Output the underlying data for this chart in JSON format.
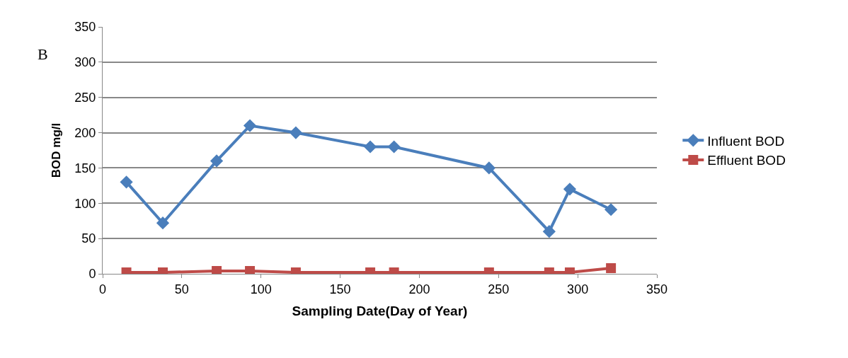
{
  "chart_data": {
    "type": "line",
    "xlabel": "Sampling Date(Day of Year)",
    "ylabel": "BOD mg/l",
    "annotations": [
      "B"
    ],
    "x": [
      15,
      38,
      72,
      93,
      122,
      169,
      184,
      244,
      282,
      295,
      321
    ],
    "series": [
      {
        "name": "Influent BOD",
        "color": "#4a7ebb",
        "marker": "diamond",
        "values": [
          130,
          72,
          160,
          210,
          200,
          180,
          180,
          150,
          60,
          120,
          91
        ]
      },
      {
        "name": "Effluent BOD",
        "color": "#be4b48",
        "marker": "square",
        "values": [
          2,
          2,
          4,
          4,
          2,
          2,
          2,
          2,
          2,
          2,
          8
        ]
      }
    ],
    "xlim": [
      0,
      350
    ],
    "xticks": [
      0,
      50,
      100,
      150,
      200,
      250,
      300,
      350
    ],
    "ylim": [
      0,
      350
    ],
    "yticks": [
      0,
      50,
      100,
      150,
      200,
      250,
      300,
      350
    ],
    "grid": "y",
    "legend": "right"
  }
}
